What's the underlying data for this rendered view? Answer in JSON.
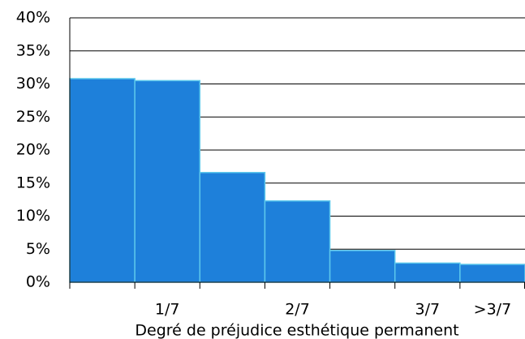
{
  "chart_data": {
    "type": "bar",
    "x_label": "Degré de préjudice esthétique permanent",
    "categories": [
      null,
      "1/7",
      null,
      "2/7",
      null,
      "3/7",
      ">3/7"
    ],
    "values": [
      30.8,
      30.5,
      16.6,
      12.3,
      4.8,
      2.9,
      2.7
    ],
    "color": "#1e80da",
    "edge_color": "#5cc8ec",
    "ylim": [
      0,
      40
    ],
    "yticks": [
      {
        "value": 0,
        "label": "0%"
      },
      {
        "value": 5,
        "label": "5%"
      },
      {
        "value": 10,
        "label": "10%"
      },
      {
        "value": 15,
        "label": "15%"
      },
      {
        "value": 20,
        "label": "20%"
      },
      {
        "value": 25,
        "label": "25%"
      },
      {
        "value": 30,
        "label": "30%"
      },
      {
        "value": 35,
        "label": "35%"
      },
      {
        "value": 40,
        "label": "40%"
      }
    ],
    "grid": true
  }
}
